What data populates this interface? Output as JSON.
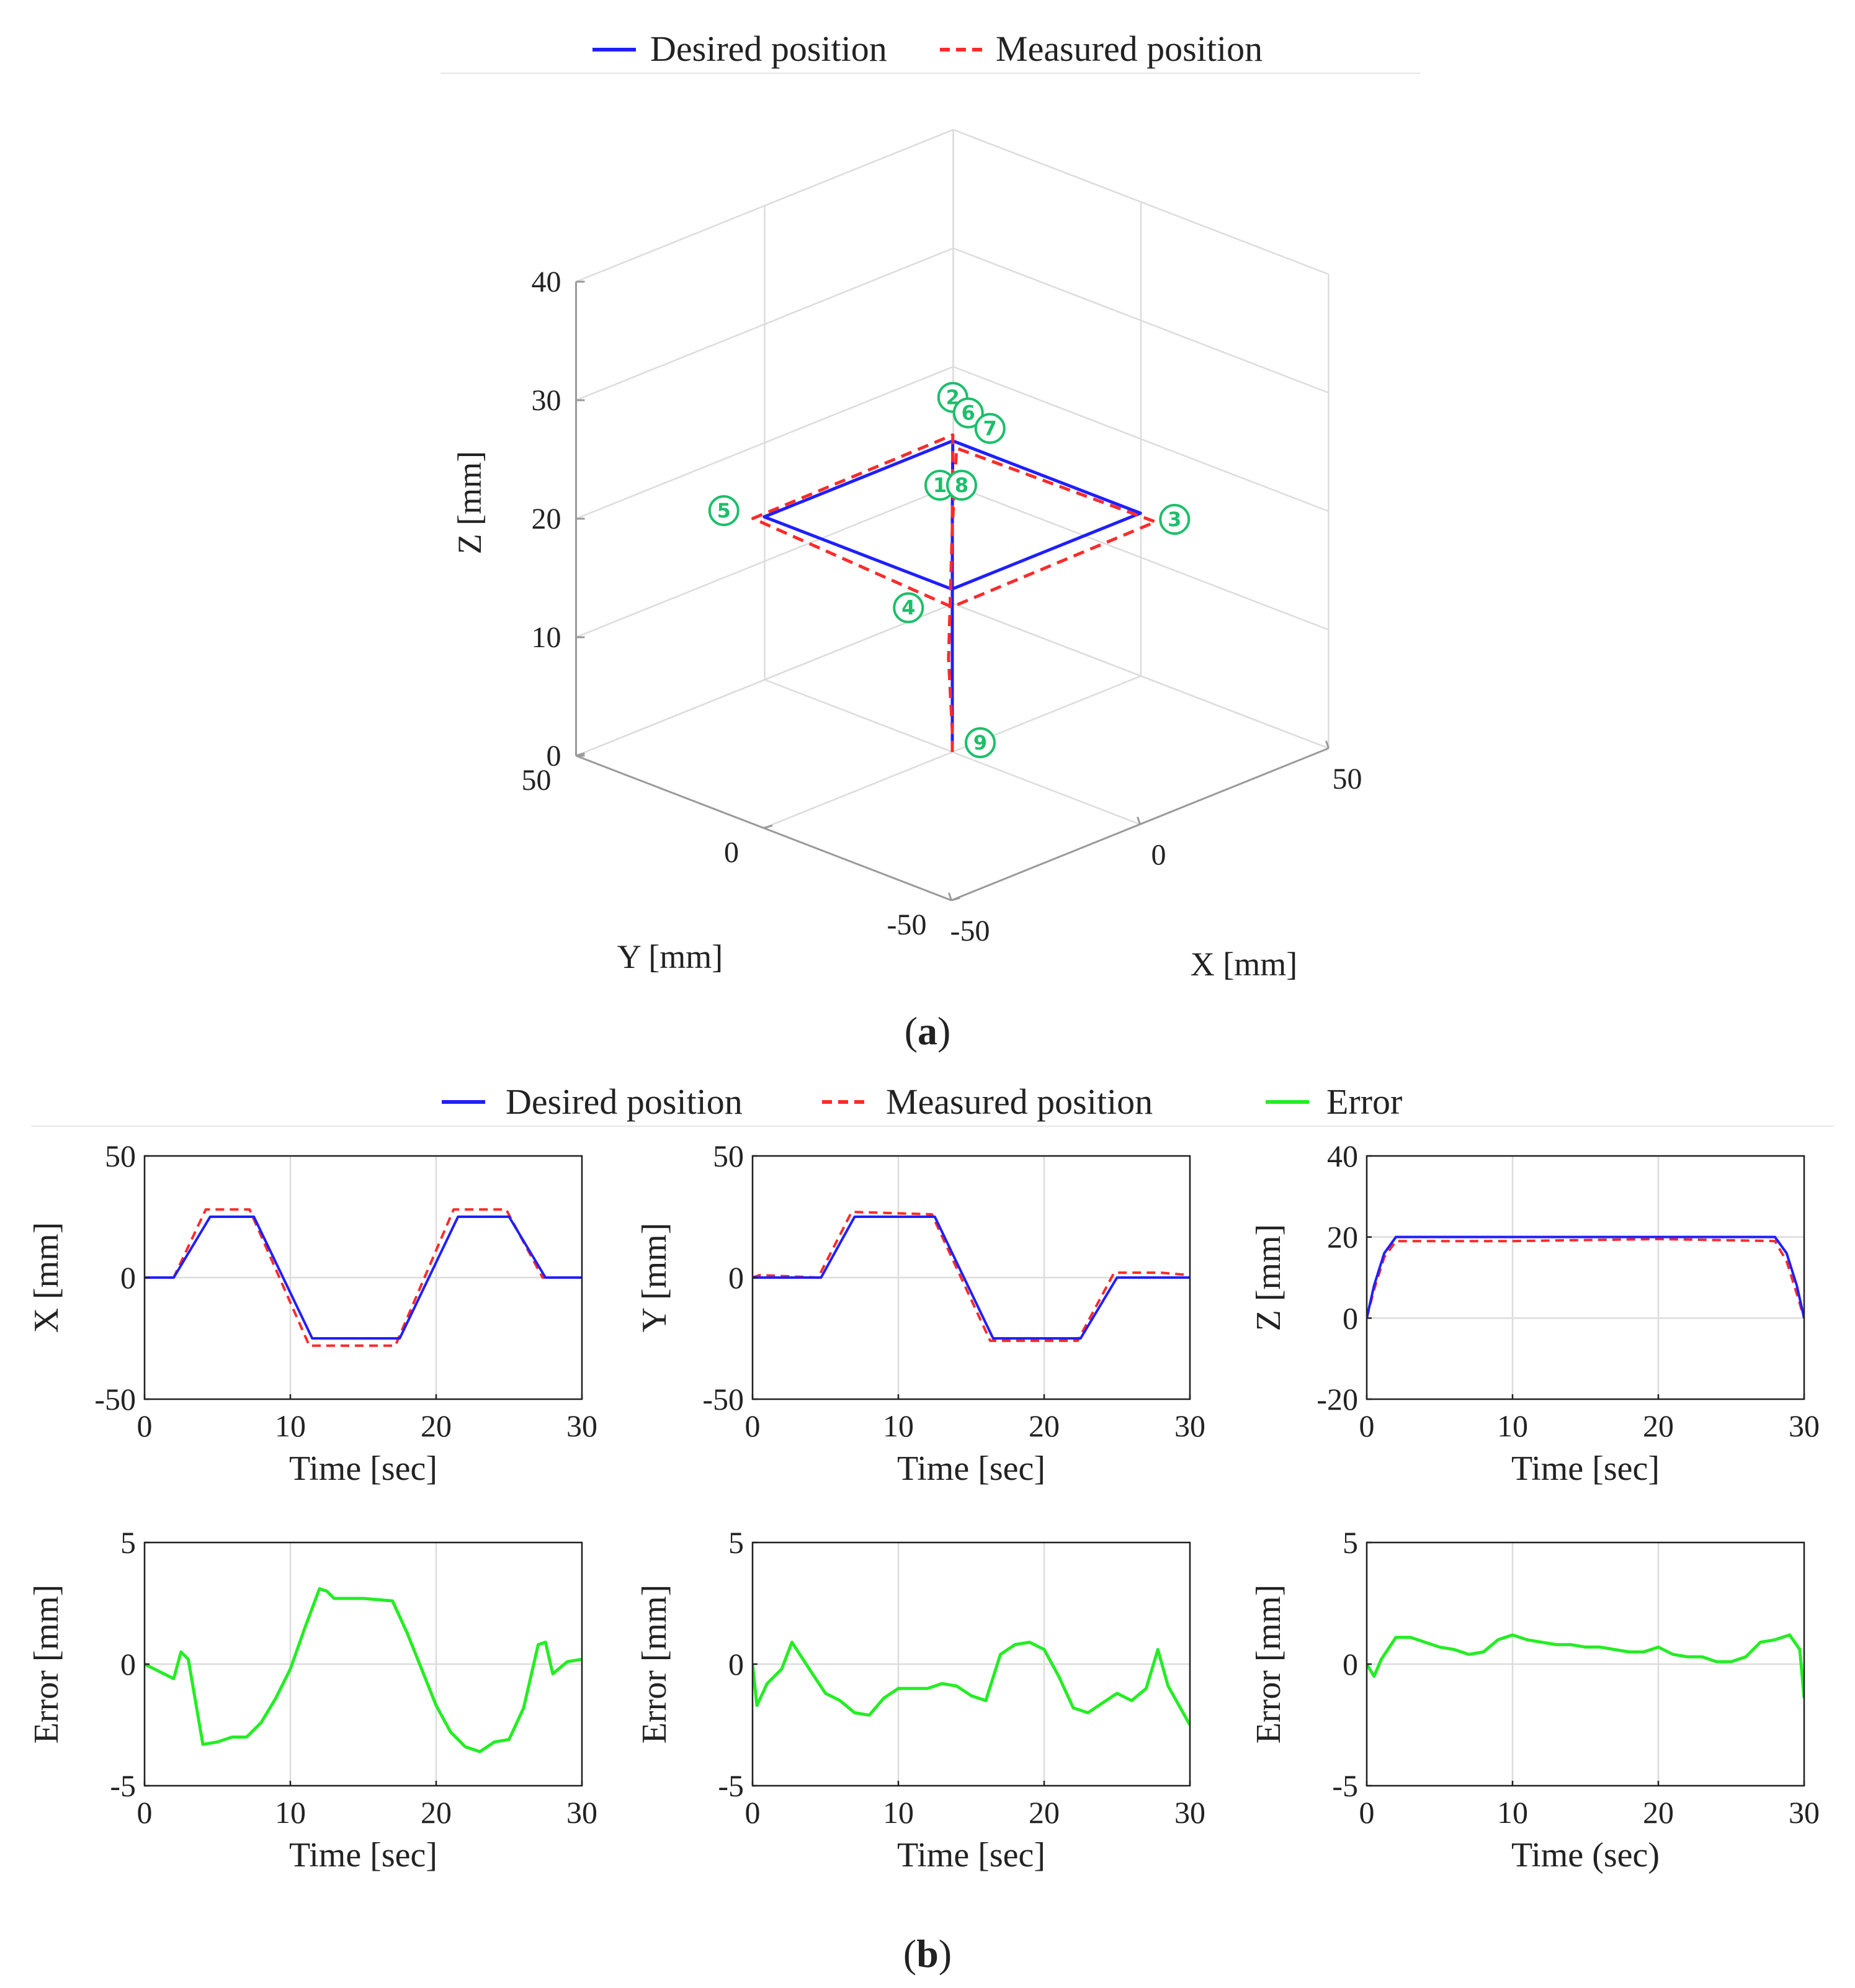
{
  "legend_a": {
    "desired": "Desired position",
    "measured": "Measured position"
  },
  "legend_b": {
    "desired": "Desired position",
    "measured": "Measured position",
    "error": "Error"
  },
  "panel_labels": {
    "a": "a",
    "b": "b"
  },
  "colors": {
    "desired": "#1f1fff",
    "measured": "#ff2a2a",
    "error": "#22ee22",
    "marker": "#1bbf6a"
  },
  "chart_data": [
    {
      "id": "a",
      "type": "line3d",
      "xlabel": "X [mm]",
      "ylabel": "Y [mm]",
      "zlabel": "Z [mm]",
      "xlim": [
        -50,
        50
      ],
      "ylim": [
        -50,
        50
      ],
      "zlim": [
        0,
        40
      ],
      "xticks": [
        "-50",
        "0",
        "50"
      ],
      "yticks": [
        "-50",
        "0",
        "50"
      ],
      "zticks": [
        "0",
        "10",
        "20",
        "30",
        "40"
      ],
      "grid": true,
      "legend": "top",
      "series": [
        {
          "name": "Desired position",
          "style": "solid",
          "points": [
            [
              0,
              0,
              0
            ],
            [
              0,
              0,
              20
            ],
            [
              25,
              25,
              20
            ],
            [
              25,
              -25,
              20
            ],
            [
              -25,
              -25,
              20
            ],
            [
              -25,
              25,
              20
            ],
            [
              25,
              25,
              20
            ],
            [
              0,
              0,
              20
            ]
          ]
        },
        {
          "name": "Measured position",
          "style": "dashed",
          "points": [
            [
              0,
              0,
              0
            ],
            [
              -1,
              -1,
              2
            ],
            [
              -1,
              0,
              8
            ],
            [
              0,
              0,
              19
            ],
            [
              27,
              26,
              19
            ],
            [
              28,
              -26,
              19
            ],
            [
              -27,
              -27,
              19
            ],
            [
              -27,
              26,
              20
            ],
            [
              27,
              27,
              20
            ],
            [
              0,
              0,
              19
            ]
          ]
        }
      ],
      "markers": [
        {
          "label": "①",
          "x": 0,
          "y": 0,
          "z": 20
        },
        {
          "label": "②",
          "x": 25,
          "y": 25,
          "z": 20
        },
        {
          "label": "③",
          "x": 25,
          "y": -25,
          "z": 20
        },
        {
          "label": "④",
          "x": -25,
          "y": -25,
          "z": 20
        },
        {
          "label": "⑤",
          "x": -25,
          "y": 25,
          "z": 20
        },
        {
          "label": "⑥",
          "x": 25,
          "y": 25,
          "z": 20
        },
        {
          "label": "⑦",
          "x": 25,
          "y": 25,
          "z": 20
        },
        {
          "label": "⑧",
          "x": 0,
          "y": 0,
          "z": 20
        },
        {
          "label": "⑨",
          "x": 0,
          "y": 0,
          "z": 0
        }
      ]
    },
    {
      "id": "b1",
      "type": "line",
      "xlabel": "Time [sec]",
      "ylabel": "X [mm]",
      "xlim": [
        0,
        30
      ],
      "ylim": [
        -50,
        50
      ],
      "xticks": [
        "0",
        "10",
        "20",
        "30"
      ],
      "yticks": [
        "-50",
        "0",
        "50"
      ],
      "grid": true,
      "series": [
        {
          "name": "Desired position",
          "x": [
            0,
            2,
            4.5,
            7.5,
            11.5,
            17.5,
            21.5,
            25,
            27.5,
            30
          ],
          "y": [
            0,
            0,
            25,
            25,
            -25,
            -25,
            25,
            25,
            0,
            0
          ]
        },
        {
          "name": "Measured position",
          "x": [
            0,
            2,
            4.2,
            7.2,
            11.3,
            17.2,
            21.2,
            24.8,
            27.3,
            30
          ],
          "y": [
            0,
            0,
            28,
            28,
            -28,
            -28,
            28,
            28,
            0,
            0
          ]
        }
      ]
    },
    {
      "id": "b2",
      "type": "line",
      "xlabel": "Time [sec]",
      "ylabel": "Y [mm]",
      "xlim": [
        0,
        30
      ],
      "ylim": [
        -50,
        50
      ],
      "xticks": [
        "0",
        "10",
        "20",
        "30"
      ],
      "yticks": [
        "-50",
        "0",
        "50"
      ],
      "grid": true,
      "series": [
        {
          "name": "Desired position",
          "x": [
            0,
            4.7,
            7,
            12.5,
            16.5,
            22.5,
            25,
            30
          ],
          "y": [
            0,
            0,
            25,
            25,
            -25,
            -25,
            0,
            0
          ]
        },
        {
          "name": "Measured position",
          "x": [
            0,
            0.5,
            4.5,
            6.8,
            12.3,
            16.3,
            22.3,
            24.8,
            28,
            30
          ],
          "y": [
            0,
            1,
            0,
            27,
            26,
            -26,
            -26,
            2,
            2,
            1
          ]
        }
      ]
    },
    {
      "id": "b3",
      "type": "line",
      "xlabel": "Time [sec]",
      "ylabel": "Z [mm]",
      "xlim": [
        0,
        30
      ],
      "ylim": [
        -20,
        40
      ],
      "xticks": [
        "0",
        "10",
        "20",
        "30"
      ],
      "yticks": [
        "-20",
        "0",
        "20",
        "40"
      ],
      "grid": true,
      "series": [
        {
          "name": "Desired position",
          "x": [
            0,
            0.5,
            1.2,
            2,
            28,
            28.8,
            29.5,
            30
          ],
          "y": [
            0,
            8,
            16,
            20,
            20,
            16,
            8,
            0
          ]
        },
        {
          "name": "Measured position",
          "x": [
            0,
            0.5,
            1.2,
            2,
            10,
            20,
            28,
            28.8,
            29.5,
            30
          ],
          "y": [
            0,
            7,
            15,
            19,
            19,
            19.5,
            19,
            14,
            6,
            0
          ]
        }
      ]
    },
    {
      "id": "b4",
      "type": "line",
      "xlabel": "Time [sec]",
      "ylabel": "Error [mm]",
      "xlim": [
        0,
        30
      ],
      "ylim": [
        -5,
        5
      ],
      "xticks": [
        "0",
        "10",
        "20",
        "30"
      ],
      "yticks": [
        "-5",
        "0",
        "5"
      ],
      "grid": true,
      "series": [
        {
          "name": "Error",
          "x": [
            0,
            1,
            2,
            2.5,
            3,
            4,
            5,
            6,
            7,
            8,
            9,
            10,
            11,
            12,
            12.5,
            13,
            15,
            17,
            18,
            19,
            20,
            21,
            22,
            23,
            24,
            25,
            26,
            27,
            27.5,
            28,
            29,
            30
          ],
          "y": [
            0,
            -0.3,
            -0.6,
            0.5,
            0.2,
            -3.3,
            -3.2,
            -3,
            -3,
            -2.4,
            -1.4,
            -0.2,
            1.5,
            3.1,
            3.0,
            2.7,
            2.7,
            2.6,
            1.3,
            -0.2,
            -1.7,
            -2.8,
            -3.4,
            -3.6,
            -3.2,
            -3.1,
            -1.8,
            0.8,
            0.9,
            -0.4,
            0.1,
            0.2
          ]
        }
      ]
    },
    {
      "id": "b5",
      "type": "line",
      "xlabel": "Time [sec]",
      "ylabel": "Error [mm]",
      "xlim": [
        0,
        30
      ],
      "ylim": [
        -5,
        5
      ],
      "xticks": [
        "0",
        "10",
        "20",
        "30"
      ],
      "yticks": [
        "-5",
        "0",
        "5"
      ],
      "grid": true,
      "series": [
        {
          "name": "Error",
          "x": [
            0,
            0.3,
            1,
            2,
            2.7,
            4,
            5,
            6,
            7,
            8,
            9,
            10,
            11,
            12,
            13,
            14,
            15,
            16,
            17,
            18,
            19,
            20,
            21,
            22,
            23,
            24,
            25,
            26,
            27,
            27.8,
            28.5,
            30
          ],
          "y": [
            0,
            -1.7,
            -0.8,
            -0.2,
            0.9,
            -0.3,
            -1.2,
            -1.5,
            -2,
            -2.1,
            -1.4,
            -1,
            -1,
            -1,
            -0.8,
            -0.9,
            -1.3,
            -1.5,
            0.4,
            0.8,
            0.9,
            0.6,
            -0.5,
            -1.8,
            -2.0,
            -1.6,
            -1.2,
            -1.5,
            -1,
            0.6,
            -0.9,
            -2.5
          ]
        }
      ]
    },
    {
      "id": "b6",
      "type": "line",
      "xlabel": "Time (sec)",
      "ylabel": "Error [mm]",
      "xlim": [
        0,
        30
      ],
      "ylim": [
        -5,
        5
      ],
      "xticks": [
        "0",
        "10",
        "20",
        "30"
      ],
      "yticks": [
        "-5",
        "0",
        "5"
      ],
      "grid": true,
      "series": [
        {
          "name": "Error",
          "x": [
            0,
            0.5,
            1,
            2,
            3,
            4,
            5,
            6,
            7,
            8,
            9,
            10,
            11,
            12,
            13,
            14,
            15,
            16,
            17,
            18,
            19,
            20,
            21,
            22,
            23,
            24,
            25,
            26,
            27,
            28,
            29,
            29.7,
            30
          ],
          "y": [
            0,
            -0.5,
            0.2,
            1.1,
            1.1,
            0.9,
            0.7,
            0.6,
            0.4,
            0.5,
            1.0,
            1.2,
            1.0,
            0.9,
            0.8,
            0.8,
            0.7,
            0.7,
            0.6,
            0.5,
            0.5,
            0.7,
            0.4,
            0.3,
            0.3,
            0.1,
            0.1,
            0.3,
            0.9,
            1.0,
            1.2,
            0.6,
            -1.4
          ]
        }
      ]
    }
  ]
}
